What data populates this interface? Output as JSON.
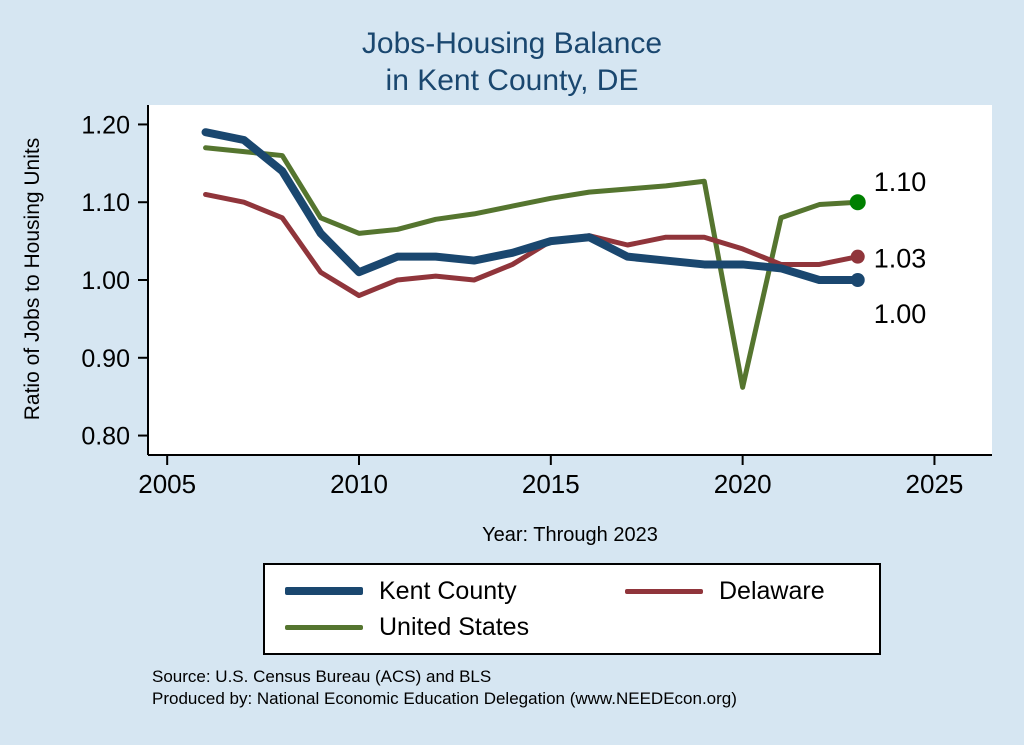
{
  "title": {
    "line1": "Jobs-Housing Balance",
    "line2": "in Kent County, DE"
  },
  "source": {
    "line1": "Source: U.S. Census Bureau (ACS) and BLS",
    "line2": "Produced by: National Economic Education Delegation (www.NEEDEcon.org)"
  },
  "colors": {
    "background": "#d6e6f2",
    "title": "#1a476f",
    "plot_background": "#ffffff",
    "axis": "#000000"
  },
  "chart_data": {
    "type": "line",
    "title": "Jobs-Housing Balance in Kent County, DE",
    "xlabel": "Year: Through 2023",
    "ylabel": "Ratio of Jobs to Housing Units",
    "grid": false,
    "legend_position": "bottom",
    "xlim": [
      2004.5,
      2026.5
    ],
    "ylim": [
      0.775,
      1.225
    ],
    "xticks": [
      2005,
      2010,
      2015,
      2020,
      2025
    ],
    "xtick_labels": [
      "2005",
      "2010",
      "2015",
      "2020",
      "2025"
    ],
    "yticks": [
      0.8,
      0.9,
      1.0,
      1.1,
      1.2
    ],
    "ytick_labels": [
      "0.80",
      "0.90",
      "1.00",
      "1.10",
      "1.20"
    ],
    "x": [
      2006,
      2007,
      2008,
      2009,
      2010,
      2011,
      2012,
      2013,
      2014,
      2015,
      2016,
      2017,
      2018,
      2019,
      2020,
      2021,
      2022,
      2023
    ],
    "series": [
      {
        "name": "Kent County",
        "color": "#1a476f",
        "width": 8,
        "dot_color": "#1a476f",
        "dot_radius": 7,
        "end_label": "1.00",
        "end_label_dy": 34,
        "values": [
          1.19,
          1.18,
          1.14,
          1.06,
          1.01,
          1.03,
          1.03,
          1.025,
          1.035,
          1.05,
          1.055,
          1.03,
          1.025,
          1.02,
          1.02,
          1.015,
          1.0,
          1.0
        ]
      },
      {
        "name": "Delaware",
        "color": "#90353b",
        "width": 5,
        "dot_color": "#90353b",
        "dot_radius": 7,
        "end_label": "1.03",
        "end_label_dy": 2,
        "values": [
          1.11,
          1.1,
          1.08,
          1.01,
          0.98,
          1.0,
          1.005,
          1.0,
          1.02,
          1.05,
          1.057,
          1.045,
          1.055,
          1.055,
          1.04,
          1.02,
          1.02,
          1.03
        ]
      },
      {
        "name": "United States",
        "color": "#55752f",
        "width": 5,
        "dot_color": "#008000",
        "dot_radius": 8,
        "end_label": "1.10",
        "end_label_dy": -20,
        "values": [
          1.17,
          1.165,
          1.16,
          1.08,
          1.06,
          1.065,
          1.078,
          1.085,
          1.095,
          1.105,
          1.113,
          1.117,
          1.121,
          1.127,
          0.862,
          1.08,
          1.097,
          1.1
        ]
      }
    ]
  }
}
